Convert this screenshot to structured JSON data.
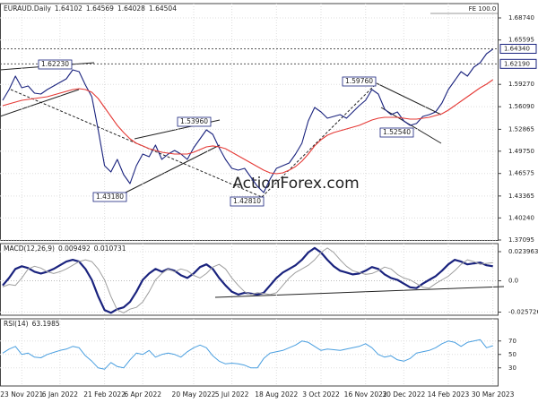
{
  "watermark": "ActionForex.com",
  "chart_data": [
    {
      "type": "line",
      "title": "EURAUD.Daily",
      "header_values": [
        "1.64102",
        "1.64569",
        "1.64028",
        "1.64504"
      ],
      "categories": [
        null,
        null,
        null,
        "23 Nov 2021",
        null,
        null,
        null,
        null,
        null,
        "6 Jan 2022",
        null,
        null,
        null,
        null,
        null,
        null,
        "21 Feb 2022",
        null,
        null,
        null,
        null,
        null,
        "6 Apr 2022",
        null,
        null,
        null,
        null,
        null,
        null,
        null,
        "20 May 2022",
        null,
        null,
        null,
        null,
        null,
        "5 Jul 2022",
        null,
        null,
        null,
        null,
        null,
        null,
        "18 Aug 2022",
        null,
        null,
        null,
        null,
        null,
        null,
        "3 Oct 2022",
        null,
        null,
        null,
        null,
        null,
        null,
        "16 Nov 2022",
        null,
        null,
        null,
        null,
        null,
        "30 Dec 2022",
        null,
        null,
        null,
        null,
        null,
        null,
        "14 Feb 2023",
        null,
        null,
        null,
        null,
        null,
        null,
        "30 Mar 2023"
      ],
      "series": [
        {
          "color": "#1a237e",
          "values": [
            1.57,
            1.5853,
            1.6045,
            1.5879,
            1.5904,
            1.5802,
            1.5789,
            1.5853,
            1.5904,
            1.5955,
            1.6006,
            1.6134,
            1.6108,
            1.5917,
            1.5751,
            1.5279,
            1.4769,
            1.4679,
            1.4858,
            1.4641,
            1.4513,
            1.4769,
            1.4934,
            1.4896,
            1.5062,
            1.4858,
            1.4934,
            1.4985,
            1.4934,
            1.4858,
            1.5024,
            1.5151,
            1.5279,
            1.5215,
            1.5024,
            1.4858,
            1.473,
            1.4705,
            1.473,
            1.4603,
            1.4475,
            1.4386,
            1.4577,
            1.473,
            1.4769,
            1.4807,
            1.4934,
            1.5088,
            1.5407,
            1.5598,
            1.5534,
            1.5445,
            1.547,
            1.5496,
            1.5445,
            1.5534,
            1.5624,
            1.57,
            1.5853,
            1.5789,
            1.5573,
            1.5496,
            1.5534,
            1.5407,
            1.5343,
            1.5369,
            1.547,
            1.5496,
            1.5534,
            1.5662,
            1.5853,
            1.5981,
            1.6108,
            1.6045,
            1.6172,
            1.6236,
            1.6364,
            1.6428
          ]
        },
        {
          "color": "#e53935",
          "values": [
            1.5624,
            1.5649,
            1.5675,
            1.57,
            1.5713,
            1.5726,
            1.5738,
            1.5751,
            1.5777,
            1.5802,
            1.5828,
            1.5853,
            1.5866,
            1.5853,
            1.5815,
            1.5726,
            1.5598,
            1.547,
            1.5343,
            1.5241,
            1.5151,
            1.5088,
            1.505,
            1.5011,
            1.4985,
            1.496,
            1.4947,
            1.4934,
            1.4934,
            1.4934,
            1.496,
            1.4998,
            1.5037,
            1.505,
            1.5037,
            1.5011,
            1.496,
            1.4909,
            1.4858,
            1.4807,
            1.4756,
            1.4705,
            1.4667,
            1.4654,
            1.4667,
            1.4705,
            1.4756,
            1.4832,
            1.4934,
            1.505,
            1.5139,
            1.5202,
            1.5241,
            1.5266,
            1.5292,
            1.5317,
            1.5343,
            1.5381,
            1.5419,
            1.5445,
            1.5458,
            1.5458,
            1.5458,
            1.5445,
            1.5432,
            1.5432,
            1.5445,
            1.5458,
            1.5483,
            1.5509,
            1.556,
            1.5624,
            1.5687,
            1.5751,
            1.5815,
            1.5879,
            1.593,
            1.5994
          ]
        }
      ],
      "ylim": [
        1.3703,
        1.7078
      ],
      "yticks": [
        {
          "value": 1.6874,
          "label": "1.68740"
        },
        1.65595,
        {
          "value": 1.5927,
          "label": "1.59270"
        },
        {
          "value": 1.5609,
          "label": "1.56090"
        },
        1.52865,
        {
          "value": 1.4975,
          "label": "1.49750"
        },
        1.46575,
        1.43365,
        {
          "value": 1.4024,
          "label": "1.40240"
        },
        1.37095
      ],
      "levels": [
        {
          "value": 1.6434,
          "label": "1.64340"
        },
        {
          "value": 1.6219,
          "label": "1.62190"
        }
      ],
      "fe_level": {
        "value": 1.6938,
        "label": "FE 100.0"
      },
      "annotations": [
        "1.62230",
        "1.53960",
        "1.43180",
        "1.42810",
        "1.59760",
        "1.52540"
      ],
      "grid": true
    },
    {
      "type": "line",
      "title": "MACD(12,26,9)",
      "header_values": [
        "0.009492",
        "0.010731"
      ],
      "series": [
        {
          "color": "#1a237e",
          "width": 2.2,
          "values": [
            -0.0038,
            0.0023,
            0.0098,
            0.012,
            0.0105,
            0.0075,
            0.006,
            0.0075,
            0.0098,
            0.0128,
            0.0158,
            0.0173,
            0.0158,
            0.0098,
            0.0008,
            -0.0128,
            -0.024,
            -0.0263,
            -0.0233,
            -0.0218,
            -0.0173,
            -0.009,
            0.0008,
            0.006,
            0.0098,
            0.0075,
            0.0098,
            0.0083,
            0.0045,
            0.0023,
            0.006,
            0.0113,
            0.0135,
            0.0098,
            0.0023,
            -0.0038,
            -0.009,
            -0.0113,
            -0.0098,
            -0.0105,
            -0.0113,
            -0.0098,
            -0.0038,
            0.0023,
            0.0068,
            0.0098,
            0.0128,
            0.0173,
            0.0233,
            0.027,
            0.0233,
            0.0173,
            0.012,
            0.0083,
            0.0068,
            0.0053,
            0.006,
            0.0083,
            0.0113,
            0.0098,
            0.0053,
            0.0023,
            0.0008,
            -0.0023,
            -0.0053,
            -0.006,
            -0.0023,
            0.0008,
            0.0038,
            0.0083,
            0.0135,
            0.0173,
            0.0158,
            0.0135,
            0.0143,
            0.015,
            0.0128,
            0.012
          ]
        },
        {
          "color": "#9e9e9e",
          "width": 1,
          "values": [
            -0.005,
            -0.003,
            -0.0038,
            0.0023,
            0.0098,
            0.012,
            0.0105,
            0.0075,
            0.006,
            0.0075,
            0.0098,
            0.0128,
            0.0158,
            0.0173,
            0.0158,
            0.0098,
            0.0008,
            -0.0128,
            -0.024,
            -0.0263,
            -0.0233,
            -0.0218,
            -0.0173,
            -0.009,
            0.0008,
            0.006,
            0.0098,
            0.0075,
            0.0098,
            0.0083,
            0.0045,
            0.0023,
            0.006,
            0.0113,
            0.0135,
            0.0098,
            0.0023,
            -0.0038,
            -0.009,
            -0.0113,
            -0.0098,
            -0.0105,
            -0.0113,
            -0.0098,
            -0.0038,
            0.0023,
            0.0068,
            0.0098,
            0.0128,
            0.0173,
            0.0233,
            0.027,
            0.0233,
            0.0173,
            0.012,
            0.0083,
            0.0068,
            0.0053,
            0.006,
            0.0083,
            0.0113,
            0.0098,
            0.0053,
            0.0023,
            0.0008,
            -0.0023,
            -0.0053,
            -0.006,
            -0.0023,
            0.0008,
            0.0038,
            0.0083,
            0.0135,
            0.0173,
            0.0158,
            0.0135,
            0.0143,
            0.015
          ]
        }
      ],
      "ylim": [
        -0.0283,
        0.0306
      ],
      "yticks": [
        0.023963,
        {
          "value": 0,
          "label": "0.0"
        },
        -0.025726
      ]
    },
    {
      "type": "line",
      "title": "RSI(14)",
      "header_values": [
        "63.1985"
      ],
      "series": [
        {
          "color": "#4a9fe0",
          "width": 1,
          "values": [
            52,
            58,
            62,
            50,
            52,
            46,
            45,
            50,
            53,
            56,
            58,
            62,
            60,
            48,
            40,
            30,
            28,
            38,
            32,
            30,
            42,
            52,
            50,
            56,
            46,
            50,
            52,
            50,
            46,
            54,
            60,
            64,
            60,
            48,
            40,
            36,
            37,
            36,
            34,
            30,
            30,
            44,
            52,
            54,
            56,
            60,
            64,
            70,
            68,
            62,
            56,
            58,
            57,
            56,
            58,
            60,
            62,
            66,
            60,
            50,
            46,
            48,
            42,
            40,
            44,
            52,
            54,
            56,
            60,
            66,
            70,
            68,
            62,
            68,
            70,
            72,
            60,
            63
          ]
        }
      ],
      "ylim": [
        3,
        103
      ],
      "yticks": [
        70,
        50,
        30
      ]
    }
  ]
}
